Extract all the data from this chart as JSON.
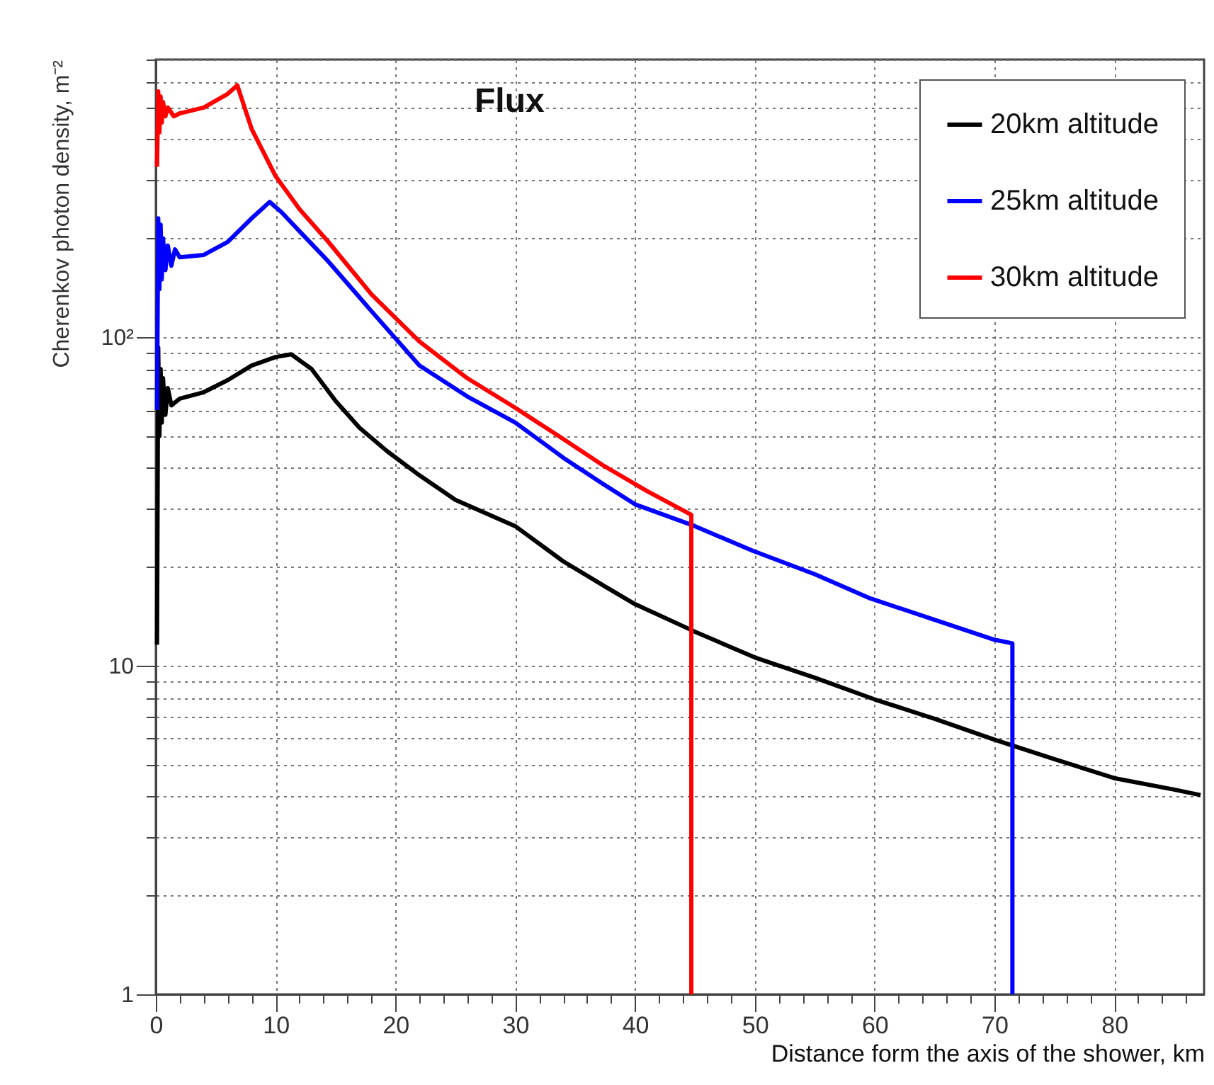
{
  "chart_data": {
    "type": "line",
    "xlabel": "Distance form the axis of the shower, km",
    "ylabel": "Cherenkov photon density, m⁻²",
    "annotations": [
      "Flux"
    ],
    "log": "y",
    "grid": true,
    "legend": "top right",
    "line_style": "solid",
    "marker": "none",
    "xlim": [
      0,
      87.5
    ],
    "ylim": [
      1,
      700
    ],
    "xticks": [
      0,
      {
        "value": 2,
        "label": null
      },
      {
        "value": 4,
        "label": null
      },
      {
        "value": 6,
        "label": null
      },
      {
        "value": 8,
        "label": null
      },
      10,
      {
        "value": 12,
        "label": null
      },
      {
        "value": 14,
        "label": null
      },
      {
        "value": 16,
        "label": null
      },
      {
        "value": 18,
        "label": null
      },
      20,
      {
        "value": 22,
        "label": null
      },
      {
        "value": 24,
        "label": null
      },
      {
        "value": 26,
        "label": null
      },
      {
        "value": 28,
        "label": null
      },
      30,
      {
        "value": 32,
        "label": null
      },
      {
        "value": 34,
        "label": null
      },
      {
        "value": 36,
        "label": null
      },
      {
        "value": 38,
        "label": null
      },
      40,
      {
        "value": 42,
        "label": null
      },
      {
        "value": 44,
        "label": null
      },
      {
        "value": 46,
        "label": null
      },
      {
        "value": 48,
        "label": null
      },
      50,
      {
        "value": 52,
        "label": null
      },
      {
        "value": 54,
        "label": null
      },
      {
        "value": 56,
        "label": null
      },
      {
        "value": 58,
        "label": null
      },
      60,
      {
        "value": 62,
        "label": null
      },
      {
        "value": 64,
        "label": null
      },
      {
        "value": 66,
        "label": null
      },
      {
        "value": 68,
        "label": null
      },
      70,
      {
        "value": 72,
        "label": null
      },
      {
        "value": 74,
        "label": null
      },
      {
        "value": 76,
        "label": null
      },
      {
        "value": 78,
        "label": null
      },
      80,
      {
        "value": 82,
        "label": null
      },
      {
        "value": 84,
        "label": null
      },
      {
        "value": 86,
        "label": null
      }
    ],
    "yticks": [
      1,
      {
        "value": 2,
        "label": null
      },
      {
        "value": 3,
        "label": null
      },
      {
        "value": 4,
        "label": null
      },
      {
        "value": 5,
        "label": null
      },
      {
        "value": 6,
        "label": null
      },
      {
        "value": 7,
        "label": null
      },
      {
        "value": 8,
        "label": null
      },
      {
        "value": 9,
        "label": null
      },
      10,
      {
        "value": 20,
        "label": null
      },
      {
        "value": 30,
        "label": null
      },
      {
        "value": 40,
        "label": null
      },
      {
        "value": 50,
        "label": null
      },
      {
        "value": 60,
        "label": null
      },
      {
        "value": 70,
        "label": null
      },
      {
        "value": 80,
        "label": null
      },
      {
        "value": 90,
        "label": null
      },
      {
        "value": 100,
        "label": "10²"
      },
      {
        "value": 200,
        "label": null
      },
      {
        "value": 300,
        "label": null
      },
      {
        "value": 400,
        "label": null
      },
      {
        "value": 500,
        "label": null
      },
      {
        "value": 600,
        "label": null
      },
      {
        "value": 700,
        "label": null
      }
    ],
    "series": [
      {
        "name": "20km altitude",
        "color": "#000000",
        "x": [
          0.1,
          0.2,
          0.3,
          0.4,
          0.5,
          0.6,
          0.8,
          1.0,
          1.3,
          2,
          4,
          6,
          8,
          10,
          11.3,
          13,
          15,
          17,
          19.3,
          22,
          25,
          30,
          34,
          37.3,
          40,
          45,
          50,
          55,
          60,
          65,
          70,
          75,
          80,
          85,
          87.2
        ],
        "values": [
          11.6,
          93,
          50,
          80,
          55,
          75,
          58,
          70,
          62,
          65,
          68,
          74,
          82,
          87,
          88.7,
          80,
          64,
          53,
          45,
          38,
          32,
          26.6,
          20.8,
          17.6,
          15.4,
          12.7,
          10.6,
          9.2,
          7.9,
          6.9,
          5.96,
          5.2,
          4.55,
          4.2,
          4.04
        ]
      },
      {
        "name": "25km altitude",
        "color": "#0000ff",
        "x": [
          0.1,
          0.2,
          0.3,
          0.4,
          0.5,
          0.6,
          0.8,
          1.0,
          1.3,
          1.6,
          2,
          4,
          6,
          8,
          9.5,
          10.5,
          12,
          14.4,
          18,
          22,
          26,
          30,
          34,
          37.3,
          40,
          45,
          49.8,
          55,
          59.5,
          65,
          70,
          71.5,
          71.5
        ],
        "values": [
          60,
          230,
          140,
          220,
          150,
          200,
          160,
          190,
          165,
          185,
          175,
          178,
          195,
          230,
          258,
          240,
          210,
          170,
          120,
          82,
          66,
          55,
          43,
          35.8,
          31,
          26.6,
          22.4,
          19,
          16.1,
          13.8,
          12,
          11.7,
          1
        ]
      },
      {
        "name": "30km altitude",
        "color": "#ff0000",
        "x": [
          0.1,
          0.2,
          0.3,
          0.4,
          0.5,
          0.6,
          0.8,
          1.0,
          1.5,
          2,
          4,
          6,
          6.8,
          8,
          10,
          12,
          14.4,
          18,
          22,
          26,
          30,
          34,
          37.3,
          41,
          44.7,
          44.7
        ],
        "values": [
          330,
          560,
          420,
          540,
          450,
          520,
          470,
          500,
          470,
          480,
          500,
          550,
          584,
          430,
          309,
          245,
          195,
          135,
          97,
          75,
          61,
          49,
          40.8,
          34,
          28.8,
          1
        ]
      }
    ]
  }
}
